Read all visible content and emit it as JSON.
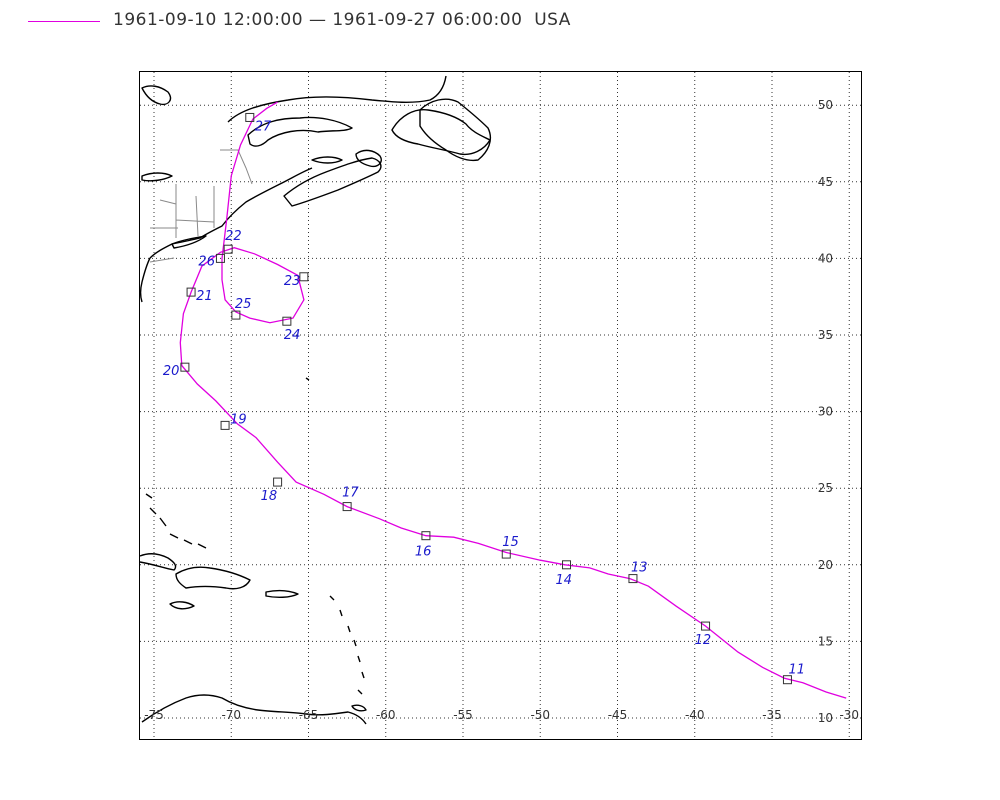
{
  "legend": {
    "text": "1961-09-10 12:00:00 — 1961-09-27 06:00:00  USA",
    "line_color": "#e000e0"
  },
  "map": {
    "lon_range": [
      -75,
      -30
    ],
    "lat_range": [
      10,
      52
    ],
    "lon_ticks": [
      {
        "value": -75,
        "label": "-75"
      },
      {
        "value": -70,
        "label": "-70"
      },
      {
        "value": -65,
        "label": "-65"
      },
      {
        "value": -60,
        "label": "-60"
      },
      {
        "value": -55,
        "label": "-55"
      },
      {
        "value": -50,
        "label": "-50"
      },
      {
        "value": -45,
        "label": "-45"
      },
      {
        "value": -40,
        "label": "-40"
      },
      {
        "value": -35,
        "label": "-35"
      },
      {
        "value": -30,
        "label": "-30"
      }
    ],
    "lat_ticks": [
      {
        "value": 10,
        "label": "10"
      },
      {
        "value": 15,
        "label": "15"
      },
      {
        "value": 20,
        "label": "20"
      },
      {
        "value": 25,
        "label": "25"
      },
      {
        "value": 30,
        "label": "30"
      },
      {
        "value": 35,
        "label": "35"
      },
      {
        "value": 40,
        "label": "40"
      },
      {
        "value": 45,
        "label": "45"
      },
      {
        "value": 50,
        "label": "50"
      }
    ],
    "grid": true,
    "track_color": "#e000e0",
    "label_color": "#1a1acc",
    "track": [
      [
        -30.2,
        11.3
      ],
      [
        -31.5,
        11.7
      ],
      [
        -33.0,
        12.3
      ],
      [
        -34.2,
        12.6
      ],
      [
        -35.6,
        13.3
      ],
      [
        -37.2,
        14.3
      ],
      [
        -39.3,
        16.0
      ],
      [
        -41.2,
        17.3
      ],
      [
        -43.0,
        18.6
      ],
      [
        -44.2,
        19.1
      ],
      [
        -45.6,
        19.4
      ],
      [
        -46.8,
        19.8
      ],
      [
        -48.4,
        20.0
      ],
      [
        -50.0,
        20.3
      ],
      [
        -52.2,
        20.8
      ],
      [
        -54.0,
        21.4
      ],
      [
        -55.6,
        21.8
      ],
      [
        -57.4,
        21.9
      ],
      [
        -59.0,
        22.4
      ],
      [
        -60.4,
        23.0
      ],
      [
        -62.5,
        23.8
      ],
      [
        -64.0,
        24.6
      ],
      [
        -65.8,
        25.4
      ],
      [
        -67.0,
        26.7
      ],
      [
        -68.4,
        28.3
      ],
      [
        -69.6,
        29.2
      ],
      [
        -71.0,
        30.7
      ],
      [
        -72.2,
        31.8
      ],
      [
        -73.2,
        33.0
      ],
      [
        -73.3,
        34.5
      ],
      [
        -73.1,
        36.4
      ],
      [
        -72.6,
        37.8
      ],
      [
        -71.9,
        39.5
      ],
      [
        -70.7,
        40.4
      ],
      [
        -69.8,
        40.7
      ],
      [
        -68.5,
        40.3
      ],
      [
        -67.0,
        39.6
      ],
      [
        -65.7,
        38.9
      ],
      [
        -65.3,
        37.3
      ],
      [
        -66.0,
        36.1
      ],
      [
        -67.5,
        35.8
      ],
      [
        -68.8,
        36.1
      ],
      [
        -69.7,
        36.5
      ],
      [
        -70.4,
        37.3
      ],
      [
        -70.6,
        38.6
      ],
      [
        -70.6,
        40.0
      ],
      [
        -70.3,
        42.5
      ],
      [
        -70.0,
        45.4
      ],
      [
        -69.4,
        47.4
      ],
      [
        -68.6,
        49.1
      ],
      [
        -67.7,
        49.8
      ],
      [
        -67.0,
        50.2
      ]
    ],
    "markers": [
      {
        "day": "11",
        "lon": -34.0,
        "lat": 12.5
      },
      {
        "day": "12",
        "lon": -39.3,
        "lat": 16.0
      },
      {
        "day": "13",
        "lon": -44.0,
        "lat": 19.1
      },
      {
        "day": "14",
        "lon": -48.3,
        "lat": 20.0
      },
      {
        "day": "15",
        "lon": -52.2,
        "lat": 20.7
      },
      {
        "day": "16",
        "lon": -57.4,
        "lat": 21.9
      },
      {
        "day": "17",
        "lon": -62.5,
        "lat": 23.8
      },
      {
        "day": "18",
        "lon": -67.0,
        "lat": 25.4
      },
      {
        "day": "19",
        "lon": -70.4,
        "lat": 29.1
      },
      {
        "day": "20",
        "lon": -73.0,
        "lat": 32.9
      },
      {
        "day": "21",
        "lon": -72.6,
        "lat": 37.8
      },
      {
        "day": "22",
        "lon": -70.2,
        "lat": 40.6
      },
      {
        "day": "23",
        "lon": -65.3,
        "lat": 38.8
      },
      {
        "day": "24",
        "lon": -66.4,
        "lat": 35.9
      },
      {
        "day": "25",
        "lon": -69.7,
        "lat": 36.3
      },
      {
        "day": "26",
        "lon": -70.7,
        "lat": 40.0
      },
      {
        "day": "27",
        "lon": -68.8,
        "lat": 49.2
      }
    ]
  }
}
